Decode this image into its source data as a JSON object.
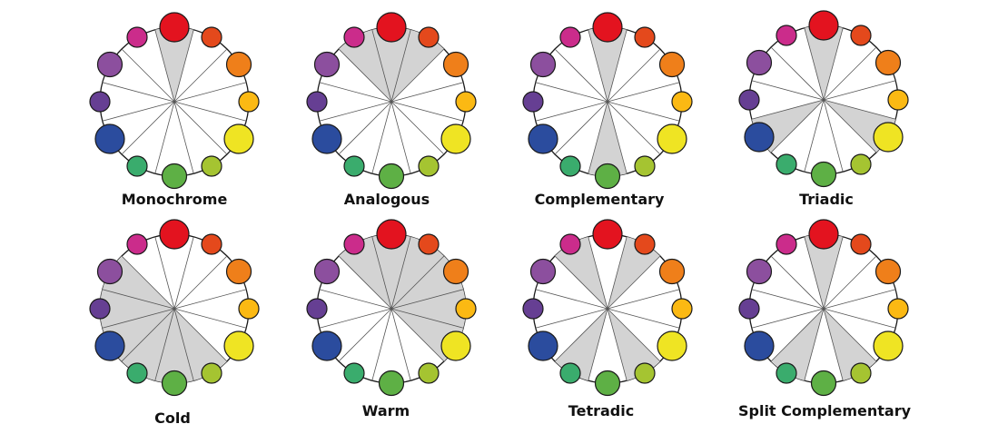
{
  "wheel": {
    "colors": [
      "#e3131f",
      "#e4491c",
      "#ef7f1a",
      "#fbb913",
      "#efe423",
      "#a5c431",
      "#5eb045",
      "#3aac6d",
      "#2b4c9e",
      "#663f93",
      "#8c4f9e",
      "#cb2c8b"
    ],
    "outline": "#1a1a1a",
    "shade": "#d3d3d3"
  },
  "diagrams": [
    {
      "name": "monochrome-wheel",
      "caption": "Monochrome",
      "shaded": [
        0
      ]
    },
    {
      "name": "analogous-wheel",
      "caption": "Analogous",
      "shaded": [
        11,
        0,
        1
      ]
    },
    {
      "name": "complementary-wheel",
      "caption": "Complementary",
      "shaded": [
        0,
        6
      ]
    },
    {
      "name": "triadic-wheel",
      "caption": "Triadic",
      "shaded": [
        0,
        4,
        8
      ]
    },
    {
      "name": "cold-wheel",
      "caption": "Cold",
      "shaded": [
        5,
        6,
        7,
        8,
        9,
        10
      ]
    },
    {
      "name": "warm-wheel",
      "caption": "Warm",
      "shaded": [
        11,
        0,
        1,
        2,
        3,
        4
      ]
    },
    {
      "name": "tetradic-wheel",
      "caption": "Tetradic",
      "shaded": [
        1,
        11,
        5,
        7
      ]
    },
    {
      "name": "split-complementary-wheel",
      "caption": "Split Complementary",
      "shaded": [
        0,
        5,
        7
      ]
    }
  ]
}
